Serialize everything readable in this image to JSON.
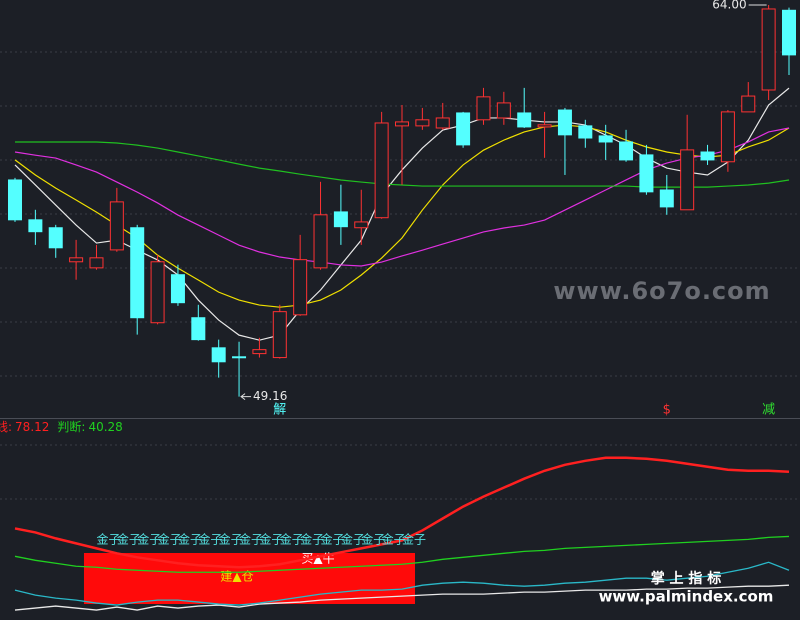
{
  "chart_data": [
    {
      "type": "candlestick",
      "up_color": "#ff3232",
      "down_color": "#54ffff",
      "ylim": [
        48.35,
        64.19
      ],
      "open": [
        57.37,
        55.86,
        55.56,
        54.27,
        54.04,
        54.72,
        55.56,
        51.96,
        53.78,
        52.15,
        51.01,
        50.67,
        50.79,
        50.64,
        52.26,
        54.04,
        56.16,
        55.56,
        55.94,
        59.42,
        59.42,
        59.34,
        59.91,
        59.65,
        59.72,
        59.91,
        59.38,
        60.02,
        59.42,
        59.04,
        58.81,
        58.32,
        56.99,
        56.24,
        58.43,
        58.06,
        59.95,
        60.78,
        63.8
      ],
      "high": [
        57.45,
        56.24,
        55.67,
        55.1,
        54.91,
        57.07,
        55.67,
        54.53,
        54.16,
        52.64,
        51.32,
        51.24,
        51.39,
        52.64,
        55.29,
        57.3,
        57.19,
        57.0,
        59.95,
        60.21,
        60.1,
        60.29,
        59.95,
        60.86,
        60.71,
        60.86,
        59.95,
        60.1,
        59.65,
        59.46,
        59.27,
        58.7,
        57.56,
        59.84,
        58.7,
        60.02,
        61.08,
        64.0,
        63.9
      ],
      "low": [
        55.78,
        54.91,
        54.42,
        53.59,
        53.97,
        54.65,
        51.51,
        51.9,
        52.6,
        51.28,
        49.88,
        49.16,
        50.64,
        50.6,
        52.22,
        53.97,
        54.91,
        54.91,
        55.9,
        57.19,
        59.27,
        59.27,
        58.59,
        59.46,
        59.46,
        59.34,
        58.21,
        57.56,
        58.59,
        58.13,
        58.06,
        56.81,
        56.05,
        56.24,
        57.94,
        57.68,
        59.95,
        60.4,
        61.35
      ],
      "close": [
        55.86,
        55.41,
        54.8,
        54.42,
        54.42,
        56.54,
        52.15,
        54.27,
        52.72,
        51.32,
        50.48,
        50.64,
        50.94,
        52.38,
        54.35,
        56.05,
        55.6,
        55.78,
        59.53,
        59.57,
        59.65,
        59.72,
        58.7,
        60.52,
        60.29,
        59.38,
        59.46,
        59.08,
        58.96,
        58.81,
        58.13,
        56.92,
        56.35,
        58.51,
        58.13,
        59.95,
        60.55,
        63.85,
        62.11
      ],
      "high_label": "64.00",
      "low_label": "49.16",
      "ma": [
        {
          "color": "#e8e8e8",
          "values": [
            57.94,
            57.18,
            56.42,
            55.66,
            54.98,
            55.09,
            54.71,
            54.34,
            53.77,
            52.82,
            52.06,
            51.49,
            51.3,
            51.49,
            52.44,
            53.2,
            54.15,
            55.09,
            56.8,
            57.75,
            58.58,
            59.26,
            59.45,
            59.72,
            59.72,
            59.64,
            59.57,
            59.57,
            59.45,
            59.07,
            58.69,
            58.2,
            57.82,
            57.67,
            57.56,
            58.05,
            58.88,
            60.21,
            60.85
          ]
        },
        {
          "color": "#f0e000",
          "values": [
            58.13,
            57.56,
            57.06,
            56.61,
            56.15,
            55.66,
            55.17,
            54.52,
            54.03,
            53.58,
            53.12,
            52.82,
            52.63,
            52.55,
            52.63,
            52.82,
            53.2,
            53.77,
            54.41,
            55.17,
            56.23,
            57.18,
            57.94,
            58.5,
            58.88,
            59.19,
            59.38,
            59.45,
            59.38,
            59.19,
            58.88,
            58.62,
            58.43,
            58.31,
            58.24,
            58.31,
            58.62,
            58.88,
            59.34
          ]
        },
        {
          "color": "#e030e0",
          "values": [
            58.43,
            58.31,
            58.2,
            57.94,
            57.67,
            57.29,
            56.91,
            56.5,
            56.04,
            55.66,
            55.28,
            54.9,
            54.64,
            54.45,
            54.34,
            54.26,
            54.15,
            54.11,
            54.26,
            54.49,
            54.71,
            54.94,
            55.17,
            55.4,
            55.55,
            55.66,
            55.85,
            56.23,
            56.61,
            56.99,
            57.37,
            57.75,
            58.01,
            58.2,
            58.31,
            58.5,
            58.81,
            59.19,
            59.34
          ]
        },
        {
          "color": "#20c020",
          "values": [
            58.81,
            58.81,
            58.81,
            58.81,
            58.81,
            58.77,
            58.69,
            58.58,
            58.43,
            58.28,
            58.13,
            57.97,
            57.82,
            57.71,
            57.59,
            57.48,
            57.37,
            57.29,
            57.22,
            57.18,
            57.14,
            57.14,
            57.14,
            57.14,
            57.14,
            57.14,
            57.14,
            57.14,
            57.14,
            57.14,
            57.14,
            57.1,
            57.1,
            57.1,
            57.1,
            57.14,
            57.18,
            57.25,
            57.37
          ]
        }
      ],
      "markers": [
        null,
        null,
        null,
        null,
        null,
        null,
        null,
        null,
        null,
        null,
        null,
        null,
        null,
        {
          "text": "解",
          "color": "#54ffff"
        },
        null,
        null,
        null,
        null,
        null,
        null,
        null,
        null,
        null,
        null,
        null,
        null,
        null,
        null,
        null,
        null,
        null,
        null,
        {
          "text": "$",
          "color": "#ff3232"
        },
        null,
        null,
        null,
        null,
        {
          "text": "减",
          "color": "#30e030"
        },
        null
      ]
    },
    {
      "type": "line",
      "ylim": [
        -8.6,
        108.97
      ],
      "series": [
        {
          "label": "线:",
          "color": "#ff2020",
          "values": [
            44.95,
            42.62,
            39.13,
            36.22,
            33.31,
            30.4,
            28.07,
            26.32,
            24.58,
            23.41,
            22.83,
            22.25,
            22.83,
            23.99,
            26.32,
            28.65,
            30.98,
            33.31,
            35.63,
            37.96,
            43.78,
            50.77,
            57.75,
            63.57,
            68.81,
            74.05,
            78.7,
            82.19,
            84.52,
            86.27,
            86.27,
            85.69,
            84.52,
            82.78,
            81.03,
            79.28,
            78.7,
            78.7,
            78.12
          ]
        },
        {
          "label": "判断:",
          "color": "#20d020",
          "values": [
            28.65,
            26.32,
            24.58,
            22.83,
            22.25,
            21.08,
            20.5,
            19.92,
            19.34,
            19.34,
            19.34,
            19.34,
            19.92,
            20.5,
            21.08,
            21.67,
            22.25,
            22.83,
            23.41,
            23.99,
            25.16,
            26.9,
            28.07,
            29.23,
            30.4,
            31.56,
            32.14,
            33.31,
            33.89,
            34.47,
            35.05,
            35.63,
            36.22,
            36.8,
            37.38,
            37.96,
            38.54,
            39.71,
            40.28
          ]
        },
        {
          "color": "#2ab8c8",
          "values": [
            8.86,
            5.95,
            4.21,
            3.04,
            1.3,
            0.13,
            1.88,
            3.04,
            3.04,
            1.88,
            0.71,
            0.13,
            1.3,
            3.04,
            4.79,
            6.53,
            7.7,
            8.86,
            8.86,
            9.44,
            11.77,
            12.94,
            13.52,
            12.94,
            11.77,
            11.19,
            11.77,
            12.94,
            13.52,
            14.68,
            15.85,
            15.85,
            14.68,
            15.85,
            17.01,
            19.34,
            21.67,
            25.16,
            20.5
          ]
        },
        {
          "color": "#e8e8e8",
          "values": [
            -2.78,
            -1.61,
            -0.45,
            -1.61,
            -2.78,
            -1.03,
            -2.78,
            -0.45,
            -1.61,
            -0.45,
            0.13,
            -1.03,
            0.71,
            1.3,
            1.88,
            3.04,
            3.62,
            4.21,
            4.79,
            5.37,
            5.95,
            6.53,
            6.53,
            6.53,
            7.12,
            7.7,
            7.7,
            8.28,
            8.86,
            8.86,
            8.86,
            9.44,
            9.44,
            10.03,
            10.03,
            10.61,
            11.19,
            11.19,
            11.77
          ]
        }
      ],
      "signals": [
        null,
        null,
        null,
        null,
        "金子",
        "金子",
        "金子",
        "金子",
        "金子",
        "金子",
        "金子",
        "金子",
        "金子",
        "金子",
        "金子",
        "金子",
        "金子",
        "金子",
        "金子",
        "金子",
        null,
        null,
        null,
        null,
        null,
        null,
        null,
        null,
        null,
        null,
        null,
        null,
        null,
        null,
        null,
        null,
        null,
        null,
        null
      ],
      "zone_labels": [
        "建▲仓",
        "买▲牛"
      ]
    }
  ],
  "watermarks": {
    "site": "www.6o7o.com",
    "brand": "掌 上 指 标",
    "url": "www.palmindex.com"
  }
}
